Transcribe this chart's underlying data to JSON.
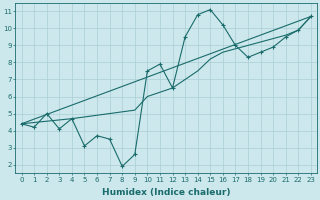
{
  "xlabel": "Humidex (Indice chaleur)",
  "bg_color": "#cce8ec",
  "grid_color": "#aacdd4",
  "line_color": "#1a6b6b",
  "spine_color": "#1a6b6b",
  "tick_color": "#1a6b6b",
  "label_color": "#1a6b6b",
  "xlim": [
    -0.5,
    23.5
  ],
  "ylim": [
    1.5,
    11.5
  ],
  "xticks": [
    0,
    1,
    2,
    3,
    4,
    5,
    6,
    7,
    8,
    9,
    10,
    11,
    12,
    13,
    14,
    15,
    16,
    17,
    18,
    19,
    20,
    21,
    22,
    23
  ],
  "yticks": [
    2,
    3,
    4,
    5,
    6,
    7,
    8,
    9,
    10,
    11
  ],
  "series1_x": [
    0,
    1,
    2,
    3,
    4,
    5,
    6,
    7,
    8,
    9,
    10,
    11,
    12,
    13,
    14,
    15,
    16,
    17,
    18,
    19,
    20,
    21,
    22,
    23
  ],
  "series1_y": [
    4.4,
    4.2,
    5.0,
    4.1,
    4.7,
    3.1,
    3.7,
    3.5,
    1.9,
    2.6,
    7.5,
    7.9,
    6.5,
    9.5,
    10.8,
    11.1,
    10.2,
    9.0,
    8.3,
    8.6,
    8.9,
    9.5,
    9.9,
    10.7
  ],
  "series2_x": [
    0,
    4,
    9,
    10,
    12,
    14,
    15,
    16,
    17,
    18,
    19,
    20,
    21,
    22,
    23
  ],
  "series2_y": [
    4.4,
    4.7,
    5.2,
    6.0,
    6.5,
    7.5,
    8.2,
    8.6,
    8.8,
    9.0,
    9.2,
    9.4,
    9.6,
    9.9,
    10.7
  ],
  "series3_x": [
    0,
    23
  ],
  "series3_y": [
    4.4,
    10.7
  ],
  "xlabel_fontsize": 6.5,
  "tick_fontsize": 5.0
}
